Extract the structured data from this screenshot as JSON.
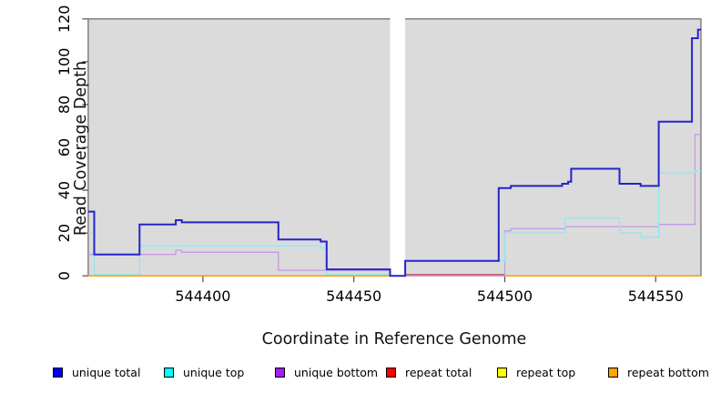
{
  "chart_data": {
    "type": "line",
    "subtype": "step-coverage",
    "title": "",
    "xlabel": "Coordinate in Reference Genome",
    "ylabel": "Read Coverage Depth",
    "xlim": [
      544362,
      544565
    ],
    "ylim": [
      0,
      120
    ],
    "x_ticks": [
      544400,
      544450,
      544500,
      544550
    ],
    "y_ticks": [
      0,
      20,
      40,
      60,
      80,
      100,
      120
    ],
    "grid": false,
    "legend_position": "bottom",
    "panel_bg": "#dbdbdb",
    "masked_region": {
      "x_start": 544462,
      "x_end": 544467,
      "color": "#ffffff"
    },
    "series": [
      {
        "name": "repeat top",
        "swatch_color": "#ffff00",
        "line_color": "#e8e84a",
        "width": 1.1,
        "above_gap": false,
        "points": [
          [
            544362,
            0
          ],
          [
            544565,
            0
          ]
        ]
      },
      {
        "name": "repeat total",
        "swatch_color": "#ff0000",
        "line_color": "#c4506a",
        "width": 1.3,
        "above_gap": false,
        "points": [
          [
            544362,
            0
          ],
          [
            544467,
            0.6
          ],
          [
            544500,
            0
          ],
          [
            544565,
            0
          ]
        ]
      },
      {
        "name": "repeat bottom",
        "swatch_color": "#ffa500",
        "line_color": "#ff9d1c",
        "width": 1.7,
        "above_gap": false,
        "points": [
          [
            544362,
            0
          ],
          [
            544565,
            0
          ]
        ]
      },
      {
        "name": "unique bottom",
        "swatch_color": "#a020f0",
        "line_color": "#c49ae6",
        "width": 1.3,
        "above_gap": true,
        "points": [
          [
            544362,
            10
          ],
          [
            544391,
            12
          ],
          [
            544393,
            11
          ],
          [
            544425,
            2.6
          ],
          [
            544462,
            0
          ],
          [
            544500,
            21
          ],
          [
            544502,
            22
          ],
          [
            544520,
            23
          ],
          [
            544551,
            24
          ],
          [
            544563,
            66
          ],
          [
            544565,
            66
          ]
        ]
      },
      {
        "name": "unique top",
        "swatch_color": "#00ffff",
        "line_color": "#8fe8ee",
        "width": 1.3,
        "above_gap": true,
        "points": [
          [
            544362,
            20
          ],
          [
            544364,
            0.7
          ],
          [
            544379,
            14
          ],
          [
            544439,
            13
          ],
          [
            544441,
            0.7
          ],
          [
            544462,
            0
          ],
          [
            544467,
            7
          ],
          [
            544500,
            20
          ],
          [
            544520,
            27
          ],
          [
            544538,
            20
          ],
          [
            544545,
            18
          ],
          [
            544551,
            48
          ],
          [
            544563,
            49
          ],
          [
            544565,
            49
          ]
        ]
      },
      {
        "name": "unique total",
        "swatch_color": "#0000ff",
        "line_color": "#2424cc",
        "width": 2,
        "above_gap": true,
        "points": [
          [
            544362,
            30
          ],
          [
            544364,
            10
          ],
          [
            544379,
            24
          ],
          [
            544391,
            26
          ],
          [
            544393,
            25
          ],
          [
            544425,
            17
          ],
          [
            544439,
            16
          ],
          [
            544441,
            3
          ],
          [
            544462,
            0
          ],
          [
            544467,
            7
          ],
          [
            544498,
            41
          ],
          [
            544502,
            42
          ],
          [
            544519,
            43
          ],
          [
            544521,
            44
          ],
          [
            544522,
            50
          ],
          [
            544538,
            43
          ],
          [
            544545,
            42
          ],
          [
            544551,
            72
          ],
          [
            544562,
            111
          ],
          [
            544564,
            115
          ],
          [
            544565,
            115
          ]
        ]
      }
    ]
  },
  "legend": {
    "items": [
      {
        "label": "unique total",
        "color": "#0000ff"
      },
      {
        "label": "unique top",
        "color": "#00ffff"
      },
      {
        "label": "unique bottom",
        "color": "#a020f0"
      },
      {
        "label": "repeat total",
        "color": "#ff0000"
      },
      {
        "label": "repeat top",
        "color": "#ffff00"
      },
      {
        "label": "repeat bottom",
        "color": "#ffa500"
      }
    ]
  }
}
